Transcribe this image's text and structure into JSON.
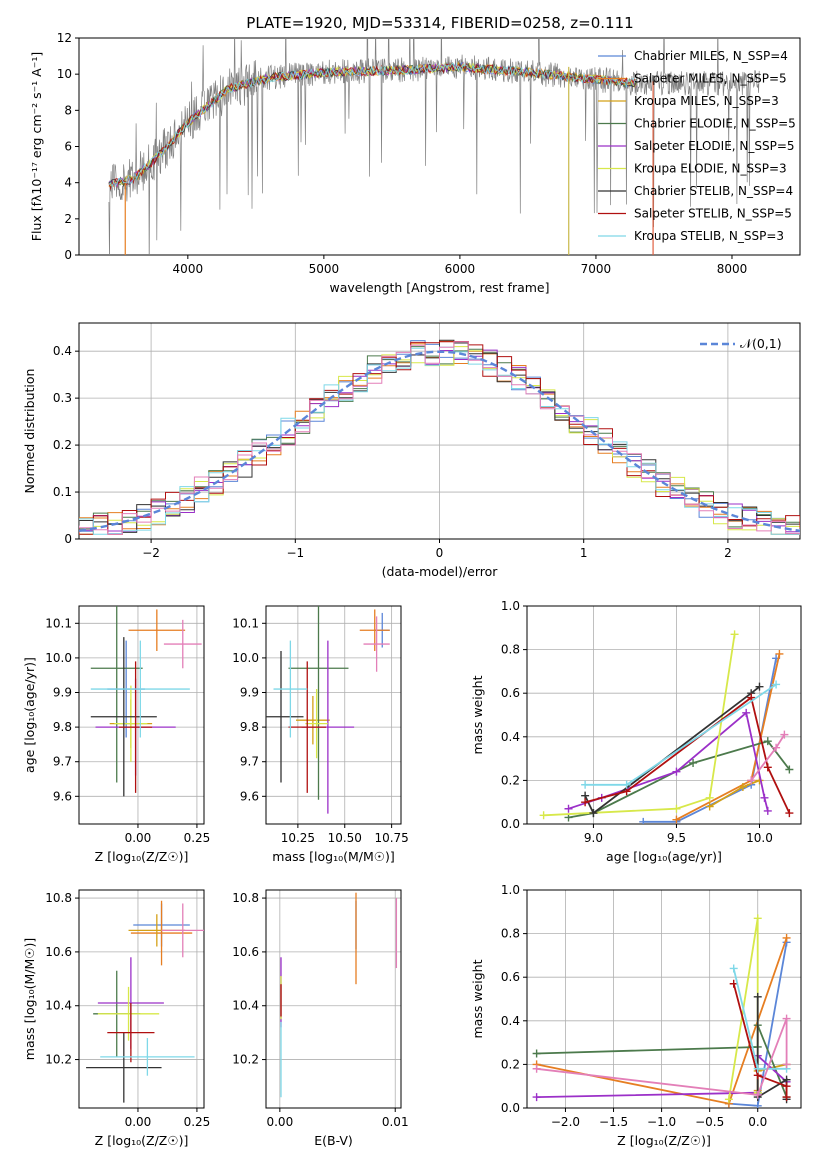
{
  "figure": {
    "title": "PLATE=1920, MJD=53314, FIBERID=0258, z=0.111"
  },
  "chart_data": [
    {
      "id": "spectrum",
      "type": "line",
      "xlabel": "wavelength [Angstrom, rest frame]",
      "ylabel": "Flux [fλ10⁻¹⁷ erg cm⁻² s⁻¹ A⁻¹]",
      "xlim": [
        3200,
        8500
      ],
      "ylim": [
        0,
        12
      ],
      "xticks": [
        4000,
        5000,
        6000,
        7000,
        8000
      ],
      "yticks": [
        0,
        2,
        4,
        6,
        8,
        10,
        12
      ],
      "grid": false,
      "legend_position": "right",
      "legend": [
        {
          "label": "Chabrier MILES, N_SSP=4",
          "color": "#5b86d8"
        },
        {
          "label": "Salpeter MILES, N_SSP=5",
          "color": "#e67e22"
        },
        {
          "label": "Kroupa MILES, N_SSP=3",
          "color": "#d4a017"
        },
        {
          "label": "Chabrier ELODIE, N_SSP=5",
          "color": "#4c7a4c"
        },
        {
          "label": "Salpeter ELODIE, N_SSP=5",
          "color": "#9b30c8"
        },
        {
          "label": "Kroupa ELODIE, N_SSP=3",
          "color": "#d7e84a"
        },
        {
          "label": "Chabrier STELIB, N_SSP=4",
          "color": "#333333"
        },
        {
          "label": "Salpeter STELIB, N_SSP=5",
          "color": "#b01010"
        },
        {
          "label": "Kroupa STELIB, N_SSP=3",
          "color": "#7fd8e8"
        }
      ],
      "continuum": {
        "x": [
          3420,
          3600,
          3800,
          4000,
          4300,
          4600,
          5000,
          5500,
          6000,
          6500,
          7000,
          7300
        ],
        "y": [
          3.9,
          4.2,
          5.6,
          7.3,
          9.2,
          9.8,
          10.1,
          10.2,
          10.4,
          10.1,
          9.7,
          9.5
        ]
      }
    },
    {
      "id": "residuals",
      "type": "histogram",
      "xlabel": "(data-model)/error",
      "ylabel": "Normed distribution",
      "xlim": [
        -2.5,
        2.5
      ],
      "ylim": [
        0,
        0.46
      ],
      "xticks": [
        -2,
        -1,
        0,
        1,
        2
      ],
      "yticks": [
        0.0,
        0.1,
        0.2,
        0.3,
        0.4
      ],
      "grid": true,
      "legend": [
        {
          "label": "𝒩(0,1)",
          "color": "#5b86d8",
          "style": "dashed"
        }
      ],
      "legend_position": "top-right"
    },
    {
      "id": "age_vs_Z",
      "type": "errorbar",
      "xlabel": "Z [log₁₀(Z/Z☉)]",
      "ylabel": "age  [log₁₀(age/yr)]",
      "xlim": [
        -0.25,
        0.28
      ],
      "ylim": [
        9.52,
        10.15
      ],
      "xticks": [
        0.0,
        0.25
      ],
      "xtick_labels": [
        "0.00",
        "0.25"
      ],
      "yticks": [
        9.6,
        9.7,
        9.8,
        9.9,
        10.0,
        10.1
      ],
      "ytick_labels": [
        "9.6",
        "9.7",
        "9.8",
        "9.9",
        "10.0",
        "10.1"
      ],
      "grid": true,
      "points": [
        {
          "x": -0.05,
          "y": 9.91,
          "color": "#5b86d8",
          "xerr": 0.08,
          "yerr": 0.14
        },
        {
          "x": 0.08,
          "y": 10.08,
          "color": "#e67e22",
          "xerr": 0.12,
          "yerr": 0.06
        },
        {
          "x": -0.03,
          "y": 9.81,
          "color": "#d4a017",
          "xerr": 0.09,
          "yerr": 0.07
        },
        {
          "x": -0.09,
          "y": 9.97,
          "color": "#4c7a4c",
          "xerr": 0.11,
          "yerr": 0.33
        },
        {
          "x": -0.01,
          "y": 9.8,
          "color": "#9b30c8",
          "xerr": 0.17,
          "yerr": 0.14
        },
        {
          "x": -0.03,
          "y": 9.81,
          "color": "#d7e84a",
          "xerr": 0.07,
          "yerr": 0.11
        },
        {
          "x": -0.06,
          "y": 9.83,
          "color": "#333333",
          "xerr": 0.14,
          "yerr": 0.23
        },
        {
          "x": -0.01,
          "y": 9.8,
          "color": "#b01010",
          "xerr": 0.07,
          "yerr": 0.19
        },
        {
          "x": 0.01,
          "y": 9.91,
          "color": "#7fd8e8",
          "xerr": 0.21,
          "yerr": 0.14
        },
        {
          "x": 0.19,
          "y": 10.04,
          "color": "#e37fb8",
          "xerr": 0.08,
          "yerr": 0.07
        }
      ]
    },
    {
      "id": "age_vs_mass",
      "type": "errorbar",
      "xlabel": "mass [log₁₀(M/M☉)]",
      "xlim": [
        10.08,
        10.8
      ],
      "ylim": [
        9.52,
        10.15
      ],
      "xticks": [
        10.25,
        10.5,
        10.75
      ],
      "xtick_labels": [
        "10.25",
        "10.50",
        "10.75"
      ],
      "yticks": [
        9.6,
        9.7,
        9.8,
        9.9,
        10.0,
        10.1
      ],
      "ytick_labels": [
        "9.6",
        "9.7",
        "9.8",
        "9.9",
        "10.0",
        "10.1"
      ],
      "grid": true,
      "points": [
        {
          "x": 10.7,
          "y": 10.08,
          "color": "#5b86d8",
          "xerr": 0.04,
          "yerr": 0.05
        },
        {
          "x": 10.66,
          "y": 10.08,
          "color": "#e67e22",
          "xerr": 0.08,
          "yerr": 0.06
        },
        {
          "x": 10.33,
          "y": 9.82,
          "color": "#d4a017",
          "xerr": 0.09,
          "yerr": 0.07
        },
        {
          "x": 10.36,
          "y": 9.97,
          "color": "#4c7a4c",
          "xerr": 0.16,
          "yerr": 0.38
        },
        {
          "x": 10.41,
          "y": 9.8,
          "color": "#9b30c8",
          "xerr": 0.14,
          "yerr": 0.25
        },
        {
          "x": 10.35,
          "y": 9.81,
          "color": "#d7e84a",
          "xerr": 0.06,
          "yerr": 0.1
        },
        {
          "x": 10.16,
          "y": 9.83,
          "color": "#333333",
          "xerr": 0.12,
          "yerr": 0.19
        },
        {
          "x": 10.3,
          "y": 9.8,
          "color": "#b01010",
          "xerr": 0.1,
          "yerr": 0.19
        },
        {
          "x": 10.21,
          "y": 9.91,
          "color": "#7fd8e8",
          "xerr": 0.09,
          "yerr": 0.14
        },
        {
          "x": 10.67,
          "y": 10.04,
          "color": "#e37fb8",
          "xerr": 0.07,
          "yerr": 0.08
        }
      ]
    },
    {
      "id": "weight_vs_age",
      "type": "line",
      "xlabel": "age  [log₁₀(age/yr)]",
      "ylabel": "mass weight",
      "xlim": [
        8.6,
        10.25
      ],
      "ylim": [
        0,
        1.0
      ],
      "xticks": [
        9.0,
        9.5,
        10.0
      ],
      "xtick_labels": [
        "9.0",
        "9.5",
        "10.0"
      ],
      "yticks": [
        0.0,
        0.2,
        0.4,
        0.6,
        0.8,
        1.0
      ],
      "ytick_labels": [
        "0.0",
        "0.2",
        "0.4",
        "0.6",
        "0.8",
        "1.0"
      ],
      "grid": true,
      "series": [
        {
          "color": "#5b86d8",
          "x": [
            9.3,
            9.5,
            9.95,
            10.1
          ],
          "y": [
            0.01,
            0.01,
            0.18,
            0.76
          ]
        },
        {
          "color": "#e67e22",
          "x": [
            9.5,
            9.95,
            10.12
          ],
          "y": [
            0.02,
            0.2,
            0.78
          ]
        },
        {
          "color": "#d4a017",
          "x": [
            9.7,
            9.9,
            10.0
          ],
          "y": [
            0.08,
            0.17,
            0.2
          ]
        },
        {
          "color": "#4c7a4c",
          "x": [
            8.85,
            9.0,
            9.6,
            10.05,
            10.18
          ],
          "y": [
            0.03,
            0.05,
            0.28,
            0.38,
            0.25
          ]
        },
        {
          "color": "#9b30c8",
          "x": [
            8.85,
            9.05,
            9.5,
            9.92,
            10.03,
            10.05
          ],
          "y": [
            0.07,
            0.12,
            0.24,
            0.51,
            0.12,
            0.06
          ]
        },
        {
          "color": "#d7e84a",
          "x": [
            8.7,
            9.5,
            9.7,
            9.85
          ],
          "y": [
            0.04,
            0.07,
            0.12,
            0.87
          ]
        },
        {
          "color": "#333333",
          "x": [
            8.95,
            9.0,
            9.95,
            10.0
          ],
          "y": [
            0.13,
            0.05,
            0.6,
            0.63
          ]
        },
        {
          "color": "#b01010",
          "x": [
            8.95,
            9.2,
            9.95,
            10.05,
            10.18
          ],
          "y": [
            0.1,
            0.15,
            0.58,
            0.26,
            0.05
          ]
        },
        {
          "color": "#7fd8e8",
          "x": [
            8.95,
            9.2,
            10.1
          ],
          "y": [
            0.18,
            0.18,
            0.64
          ]
        },
        {
          "color": "#e37fb8",
          "x": [
            9.95,
            10.1,
            10.15
          ],
          "y": [
            0.2,
            0.35,
            0.41
          ]
        }
      ]
    },
    {
      "id": "mass_vs_Z",
      "type": "errorbar",
      "xlabel": "Z [log₁₀(Z/Z☉)]",
      "ylabel": "mass [log₁₀(M/M☉)]",
      "xlim": [
        -0.25,
        0.28
      ],
      "ylim": [
        10.02,
        10.83
      ],
      "xticks": [
        0.0,
        0.25
      ],
      "xtick_labels": [
        "0.00",
        "0.25"
      ],
      "yticks": [
        10.2,
        10.4,
        10.6,
        10.8
      ],
      "ytick_labels": [
        "10.2",
        "10.4",
        "10.6",
        "10.8"
      ],
      "grid": true,
      "points": [
        {
          "x": 0.1,
          "y": 10.7,
          "color": "#5b86d8",
          "xerr": 0.12,
          "yerr": 0.08
        },
        {
          "x": 0.1,
          "y": 10.67,
          "color": "#e67e22",
          "xerr": 0.13,
          "yerr": 0.12
        },
        {
          "x": 0.08,
          "y": 10.68,
          "color": "#d4a017",
          "xerr": 0.12,
          "yerr": 0.06
        },
        {
          "x": -0.09,
          "y": 10.37,
          "color": "#4c7a4c",
          "xerr": 0.1,
          "yerr": 0.16
        },
        {
          "x": -0.03,
          "y": 10.41,
          "color": "#9b30c8",
          "xerr": 0.14,
          "yerr": 0.17
        },
        {
          "x": -0.04,
          "y": 10.37,
          "color": "#d7e84a",
          "xerr": 0.13,
          "yerr": 0.1
        },
        {
          "x": -0.06,
          "y": 10.17,
          "color": "#333333",
          "xerr": 0.16,
          "yerr": 0.13
        },
        {
          "x": -0.03,
          "y": 10.3,
          "color": "#b01010",
          "xerr": 0.1,
          "yerr": 0.11
        },
        {
          "x": 0.04,
          "y": 10.21,
          "color": "#7fd8e8",
          "xerr": 0.2,
          "yerr": 0.07
        },
        {
          "x": 0.19,
          "y": 10.68,
          "color": "#e37fb8",
          "xerr": 0.09,
          "yerr": 0.1
        }
      ]
    },
    {
      "id": "mass_vs_ebv",
      "type": "errorbar",
      "xlabel": "E(B-V)",
      "xlim": [
        -0.0012,
        0.0105
      ],
      "ylim": [
        10.02,
        10.83
      ],
      "xticks": [
        0.0,
        0.01
      ],
      "xtick_labels": [
        "0.00",
        "0.01"
      ],
      "yticks": [
        10.2,
        10.4,
        10.6,
        10.8
      ],
      "ytick_labels": [
        "10.2",
        "10.4",
        "10.6",
        "10.8"
      ],
      "grid": true,
      "points": [
        {
          "x": 0.0066,
          "y": 10.7,
          "color": "#5b86d8",
          "xerr": 0,
          "yerr": 0.09
        },
        {
          "x": 0.0066,
          "y": 10.65,
          "color": "#e67e22",
          "xerr": 0,
          "yerr": 0.17
        },
        {
          "x": 0.0001,
          "y": 10.45,
          "color": "#9b30c8",
          "xerr": 0,
          "yerr": 0.13
        },
        {
          "x": 0.0001,
          "y": 10.43,
          "color": "#d7e84a",
          "xerr": 0,
          "yerr": 0.08
        },
        {
          "x": 0.0001,
          "y": 10.42,
          "color": "#b01010",
          "xerr": 0,
          "yerr": 0.06
        },
        {
          "x": 0.0001,
          "y": 10.2,
          "color": "#7fd8e8",
          "xerr": 0,
          "yerr": 0.14
        },
        {
          "x": 0.0101,
          "y": 10.67,
          "color": "#e37fb8",
          "xerr": 0,
          "yerr": 0.13
        }
      ]
    },
    {
      "id": "weight_vs_Z",
      "type": "line",
      "xlabel": "Z [log₁₀(Z/Z☉)]",
      "ylabel": "mass weight",
      "xlim": [
        -2.4,
        0.45
      ],
      "ylim": [
        0,
        1.0
      ],
      "xticks": [
        -2.0,
        -1.5,
        -1.0,
        -0.5,
        0.0
      ],
      "xtick_labels": [
        "−2.0",
        "−1.5",
        "−1.0",
        "−0.5",
        "0.0"
      ],
      "yticks": [
        0.0,
        0.2,
        0.4,
        0.6,
        0.8,
        1.0
      ],
      "ytick_labels": [
        "0.0",
        "0.2",
        "0.4",
        "0.6",
        "0.8",
        "1.0"
      ],
      "grid": true,
      "series": [
        {
          "color": "#5b86d8",
          "x": [
            -0.3,
            0.0,
            0.3
          ],
          "y": [
            0.02,
            0.01,
            0.76
          ]
        },
        {
          "color": "#e67e22",
          "x": [
            -2.3,
            -0.3,
            0.3
          ],
          "y": [
            0.2,
            0.02,
            0.78
          ]
        },
        {
          "color": "#d4a017",
          "x": [
            0.0,
            0.0,
            0.3
          ],
          "y": [
            0.08,
            0.17,
            0.2
          ]
        },
        {
          "color": "#4c7a4c",
          "x": [
            -2.3,
            0.0,
            0.0,
            0.3
          ],
          "y": [
            0.25,
            0.28,
            0.38,
            0.05
          ]
        },
        {
          "color": "#9b30c8",
          "x": [
            -2.3,
            0.0,
            0.0,
            0.3
          ],
          "y": [
            0.05,
            0.07,
            0.24,
            0.12
          ]
        },
        {
          "color": "#d7e84a",
          "x": [
            -0.3,
            0.0,
            0.0
          ],
          "y": [
            0.04,
            0.87,
            0.07
          ]
        },
        {
          "color": "#333333",
          "x": [
            0.0,
            0.0,
            0.3,
            0.3
          ],
          "y": [
            0.51,
            0.05,
            0.13,
            0.04
          ]
        },
        {
          "color": "#b01010",
          "x": [
            -0.25,
            0.0,
            0.3,
            0.3
          ],
          "y": [
            0.57,
            0.15,
            0.1,
            0.05
          ]
        },
        {
          "color": "#7fd8e8",
          "x": [
            -0.25,
            0.0,
            0.3
          ],
          "y": [
            0.64,
            0.18,
            0.18
          ]
        },
        {
          "color": "#e37fb8",
          "x": [
            -2.3,
            0.0,
            0.3,
            0.3
          ],
          "y": [
            0.18,
            0.06,
            0.41,
            0.2
          ]
        }
      ]
    }
  ]
}
